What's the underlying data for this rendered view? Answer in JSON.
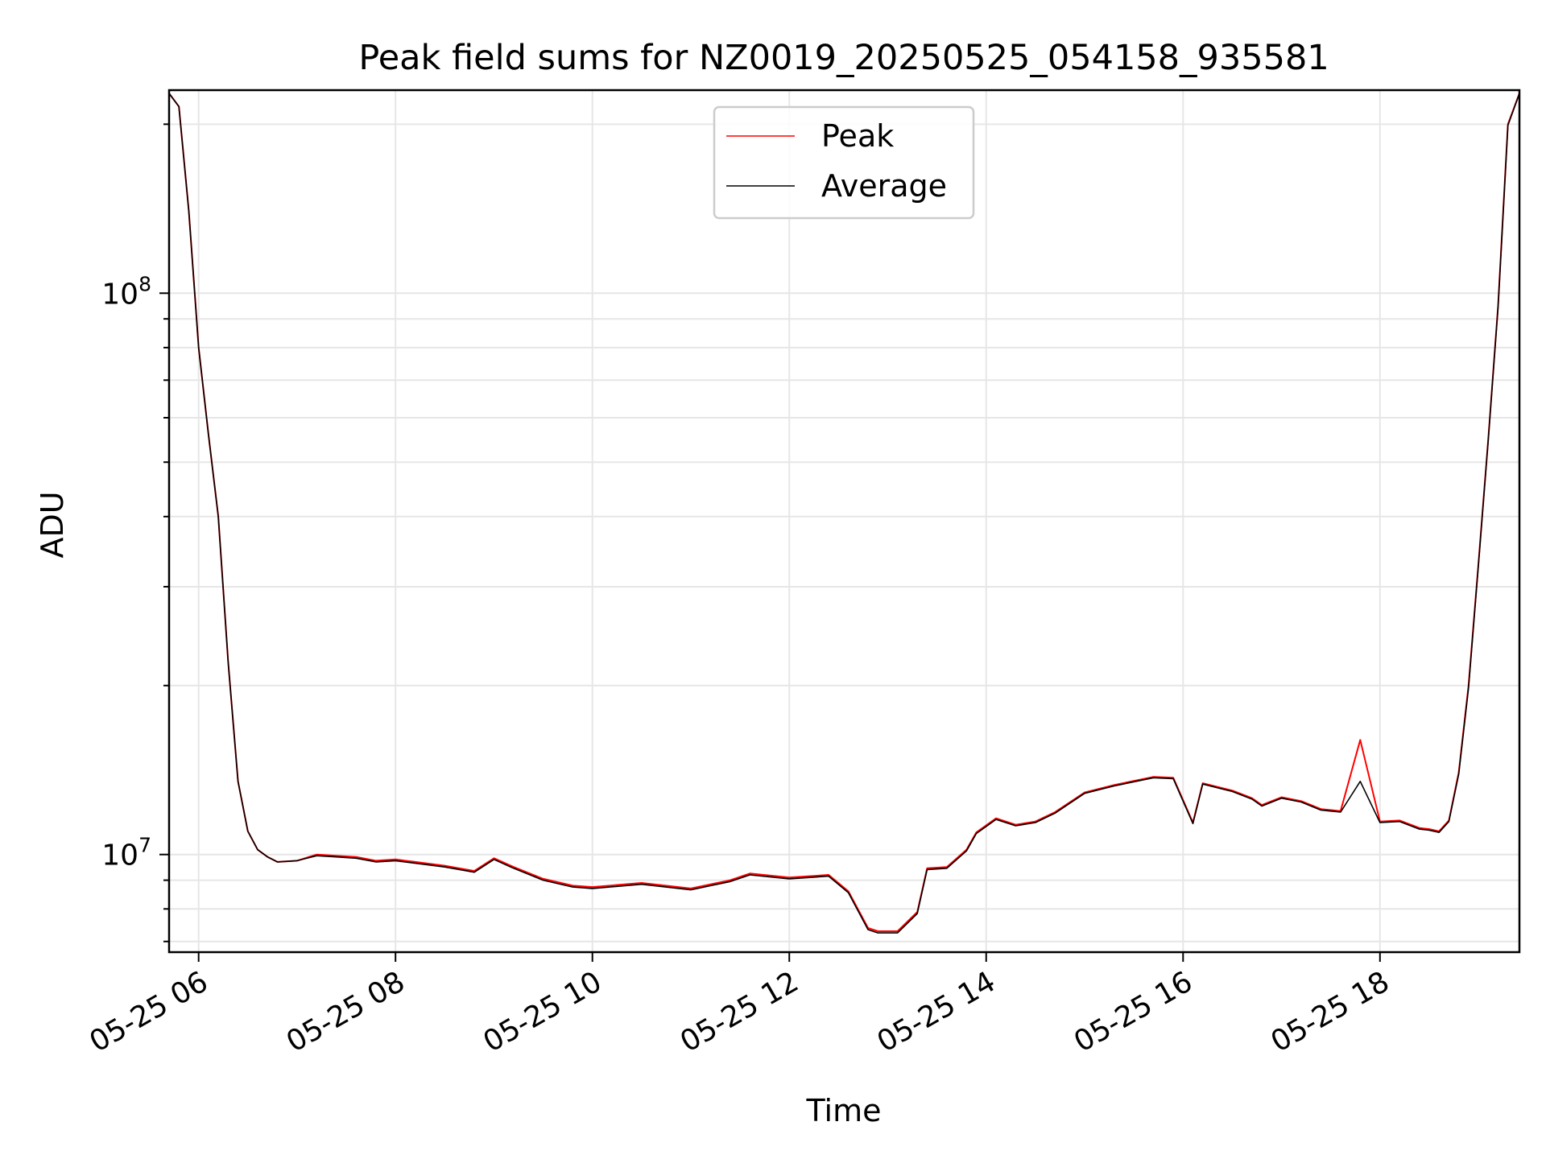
{
  "chart_data": {
    "type": "line",
    "title": "Peak field sums for NZ0019_20250525_054158_935581",
    "xlabel": "Time",
    "ylabel": "ADU",
    "y_scale": "log",
    "grid": true,
    "legend_position": "upper center",
    "xlim": [
      "2025-05-25 05:42",
      "2025-05-25 19:25"
    ],
    "ylim": [
      6700000,
      230000000
    ],
    "x_ticks": [
      "2025-05-25 06:00",
      "2025-05-25 08:00",
      "2025-05-25 10:00",
      "2025-05-25 12:00",
      "2025-05-25 14:00",
      "2025-05-25 16:00",
      "2025-05-25 18:00"
    ],
    "x_tick_labels": [
      "05-25 06",
      "05-25 08",
      "05-25 10",
      "05-25 12",
      "05-25 14",
      "05-25 16",
      "05-25 18"
    ],
    "y_major_ticks": [
      10000000,
      100000000
    ],
    "y_major_tick_labels": [
      {
        "base": "10",
        "exp": "7"
      },
      {
        "base": "10",
        "exp": "8"
      }
    ],
    "x": [
      "2025-05-25 05:42",
      "2025-05-25 05:48",
      "2025-05-25 05:54",
      "2025-05-25 06:00",
      "2025-05-25 06:06",
      "2025-05-25 06:12",
      "2025-05-25 06:18",
      "2025-05-25 06:24",
      "2025-05-25 06:30",
      "2025-05-25 06:36",
      "2025-05-25 06:42",
      "2025-05-25 06:48",
      "2025-05-25 07:00",
      "2025-05-25 07:12",
      "2025-05-25 07:24",
      "2025-05-25 07:36",
      "2025-05-25 07:48",
      "2025-05-25 08:00",
      "2025-05-25 08:30",
      "2025-05-25 08:48",
      "2025-05-25 09:00",
      "2025-05-25 09:12",
      "2025-05-25 09:30",
      "2025-05-25 09:48",
      "2025-05-25 10:00",
      "2025-05-25 10:30",
      "2025-05-25 11:00",
      "2025-05-25 11:24",
      "2025-05-25 11:36",
      "2025-05-25 12:00",
      "2025-05-25 12:24",
      "2025-05-25 12:36",
      "2025-05-25 12:48",
      "2025-05-25 12:54",
      "2025-05-25 13:06",
      "2025-05-25 13:18",
      "2025-05-25 13:24",
      "2025-05-25 13:36",
      "2025-05-25 13:48",
      "2025-05-25 13:54",
      "2025-05-25 14:06",
      "2025-05-25 14:18",
      "2025-05-25 14:30",
      "2025-05-25 14:42",
      "2025-05-25 15:00",
      "2025-05-25 15:18",
      "2025-05-25 15:42",
      "2025-05-25 15:54",
      "2025-05-25 16:06",
      "2025-05-25 16:12",
      "2025-05-25 16:30",
      "2025-05-25 16:42",
      "2025-05-25 16:48",
      "2025-05-25 17:00",
      "2025-05-25 17:12",
      "2025-05-25 17:24",
      "2025-05-25 17:36",
      "2025-05-25 17:48",
      "2025-05-25 18:00",
      "2025-05-25 18:12",
      "2025-05-25 18:24",
      "2025-05-25 18:30",
      "2025-05-25 18:36",
      "2025-05-25 18:42",
      "2025-05-25 18:48",
      "2025-05-25 18:54",
      "2025-05-25 19:00",
      "2025-05-25 19:06",
      "2025-05-25 19:12",
      "2025-05-25 19:18",
      "2025-05-25 19:25"
    ],
    "series": [
      {
        "name": "Peak",
        "color": "#ff0000",
        "values": [
          227000000,
          215000000,
          140000000,
          80000000,
          56000000,
          40000000,
          22000000,
          13500000,
          11000000,
          10200000,
          9900000,
          9700000,
          9750000,
          10000000,
          9950000,
          9900000,
          9750000,
          9800000,
          9550000,
          9350000,
          9850000,
          9500000,
          9050000,
          8800000,
          8750000,
          8900000,
          8700000,
          9000000,
          9250000,
          9100000,
          9200000,
          8600000,
          7400000,
          7300000,
          7300000,
          7900000,
          9450000,
          9500000,
          10200000,
          10950000,
          11600000,
          11300000,
          11450000,
          11900000,
          12900000,
          13300000,
          13750000,
          13700000,
          11400000,
          13400000,
          13000000,
          12600000,
          12250000,
          12650000,
          12450000,
          12050000,
          11950000,
          16000000,
          11450000,
          11500000,
          11150000,
          11100000,
          11000000,
          11500000,
          14000000,
          20000000,
          33000000,
          55000000,
          95000000,
          200000000,
          227000000
        ]
      },
      {
        "name": "Average",
        "color": "#000000",
        "values": [
          227000000,
          215000000,
          140000000,
          80000000,
          56000000,
          40000000,
          22000000,
          13500000,
          11000000,
          10200000,
          9900000,
          9700000,
          9750000,
          9950000,
          9900000,
          9850000,
          9700000,
          9750000,
          9500000,
          9300000,
          9800000,
          9450000,
          9000000,
          8750000,
          8700000,
          8850000,
          8650000,
          8950000,
          9200000,
          9050000,
          9150000,
          8550000,
          7350000,
          7250000,
          7250000,
          7850000,
          9400000,
          9450000,
          10150000,
          10900000,
          11550000,
          11250000,
          11400000,
          11850000,
          12850000,
          13250000,
          13700000,
          13650000,
          11350000,
          13350000,
          12950000,
          12550000,
          12200000,
          12600000,
          12400000,
          12000000,
          11900000,
          13500000,
          11400000,
          11450000,
          11100000,
          11050000,
          10950000,
          11450000,
          13900000,
          19800000,
          32800000,
          54800000,
          94500000,
          199000000,
          227000000
        ]
      }
    ]
  }
}
